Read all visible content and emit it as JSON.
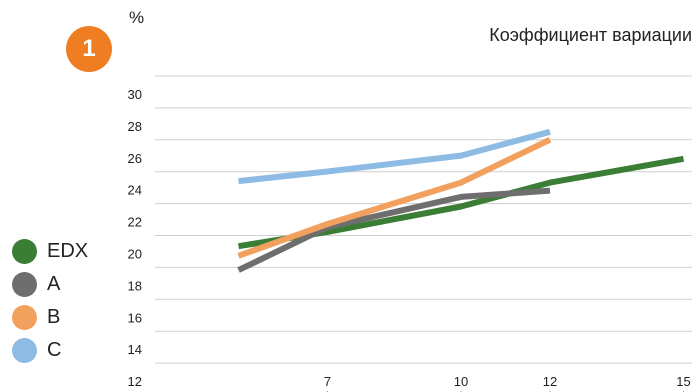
{
  "badge": "1",
  "chart_data": {
    "type": "line",
    "title": "Коэффициент вариации",
    "unit": "%",
    "x": [
      7,
      10,
      12,
      15
    ],
    "y_ticks": [
      "30",
      "28",
      "26",
      "24",
      "22",
      "20",
      "18",
      "16",
      "14",
      "12"
    ],
    "x_ticks": [
      "7",
      "10",
      "12",
      "15"
    ],
    "grid": true,
    "legend_position": "left",
    "series": [
      {
        "name": "EDX",
        "color": "#3a7d35",
        "points": [
          [
            5,
            21.4
          ],
          [
            7,
            22.3
          ],
          [
            10,
            23.9
          ],
          [
            12,
            25.4
          ],
          [
            15,
            26.9
          ]
        ]
      },
      {
        "name": "A",
        "color": "#6e6e6e",
        "points": [
          [
            5,
            19.9
          ],
          [
            7,
            22.6
          ],
          [
            10,
            24.5
          ],
          [
            12,
            24.9
          ]
        ]
      },
      {
        "name": "B",
        "color": "#f2a05e",
        "points": [
          [
            5,
            20.8
          ],
          [
            7,
            22.8
          ],
          [
            10,
            25.4
          ],
          [
            12,
            28.1
          ]
        ]
      },
      {
        "name": "C",
        "color": "#8dbbe3",
        "points": [
          [
            5,
            25.5
          ],
          [
            7,
            26.1
          ],
          [
            10,
            27.1
          ],
          [
            12,
            28.6
          ]
        ]
      }
    ]
  }
}
